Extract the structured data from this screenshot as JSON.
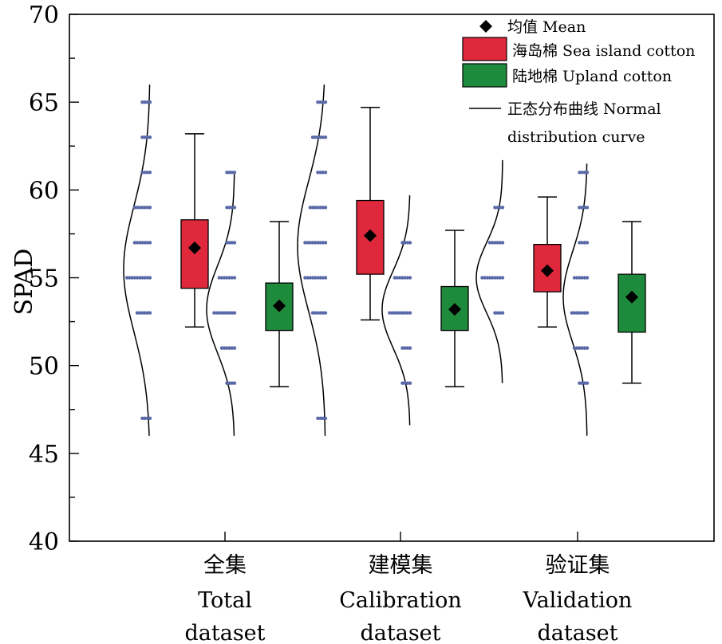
{
  "chart_data": {
    "type": "box",
    "ylabel": "SPAD",
    "ylim": [
      40,
      70
    ],
    "yticks": [
      40,
      45,
      50,
      55,
      60,
      65,
      70
    ],
    "categories": [
      {
        "cn": "全集",
        "en1": "Total",
        "en2": "dataset"
      },
      {
        "cn": "建模集",
        "en1": "Calibration",
        "en2": "dataset"
      },
      {
        "cn": "验证集",
        "en1": "Validation",
        "en2": "dataset"
      }
    ],
    "series": [
      {
        "name": "海岛棉 Sea island cotton",
        "color": "#e0283c"
      },
      {
        "name": "陆地棉 Upland cotton",
        "color": "#1e8a3c"
      }
    ],
    "legend": {
      "mean": "均值 Mean",
      "sea": "海岛棉 Sea island cotton",
      "upland": "陆地棉 Upland cotton",
      "normal_line1": "正态分布曲线 Normal",
      "normal_line2": "distribution curve",
      "position": "top-right"
    },
    "boxes": [
      {
        "category": 0,
        "series": 0,
        "whisker_low": 52.2,
        "q1": 54.4,
        "q3": 58.3,
        "whisker_high": 63.2,
        "mean": 56.7,
        "points": [
          47,
          53,
          53,
          55,
          55,
          55,
          55,
          55,
          57,
          57,
          57,
          59,
          59,
          59,
          61,
          63,
          65
        ],
        "curve_mean": 55.5,
        "curve_sd": 3.6,
        "curve_range": [
          46,
          66
        ]
      },
      {
        "category": 0,
        "series": 1,
        "whisker_low": 48.8,
        "q1": 52.0,
        "q3": 54.7,
        "whisker_high": 58.2,
        "mean": 53.4,
        "points": [
          49,
          51,
          51,
          53,
          53,
          53,
          53,
          55,
          55,
          55,
          57,
          59,
          61
        ],
        "curve_mean": 53.2,
        "curve_sd": 2.5,
        "curve_range": [
          46,
          61
        ]
      },
      {
        "category": 1,
        "series": 0,
        "whisker_low": 52.6,
        "q1": 55.2,
        "q3": 59.4,
        "whisker_high": 64.7,
        "mean": 57.4,
        "points": [
          47,
          53,
          53,
          55,
          55,
          55,
          55,
          57,
          57,
          57,
          57,
          59,
          59,
          59,
          61,
          63,
          63,
          65
        ],
        "curve_mean": 56.8,
        "curve_sd": 3.7,
        "curve_range": [
          46,
          66
        ]
      },
      {
        "category": 1,
        "series": 1,
        "whisker_low": 48.8,
        "q1": 52.0,
        "q3": 54.5,
        "whisker_high": 57.7,
        "mean": 53.2,
        "points": [
          49,
          51,
          53,
          53,
          53,
          53,
          55,
          55,
          55,
          57
        ],
        "curve_mean": 53.2,
        "curve_sd": 2.2,
        "curve_range": [
          46.6,
          59.7
        ]
      },
      {
        "category": 2,
        "series": 0,
        "whisker_low": 52.2,
        "q1": 54.2,
        "q3": 56.9,
        "whisker_high": 59.6,
        "mean": 55.4,
        "points": [
          53,
          55,
          55,
          55,
          55,
          57,
          57,
          59
        ],
        "curve_mean": 55.0,
        "curve_sd": 2.0,
        "curve_range": [
          49,
          61.7
        ]
      },
      {
        "category": 2,
        "series": 1,
        "whisker_low": 49.0,
        "q1": 51.9,
        "q3": 55.2,
        "whisker_high": 58.2,
        "mean": 53.9,
        "points": [
          49,
          51,
          51,
          53,
          53,
          53,
          55,
          55,
          57,
          59,
          61
        ],
        "curve_mean": 53.9,
        "curve_sd": 2.6,
        "curve_range": [
          46,
          61.5
        ]
      }
    ]
  }
}
